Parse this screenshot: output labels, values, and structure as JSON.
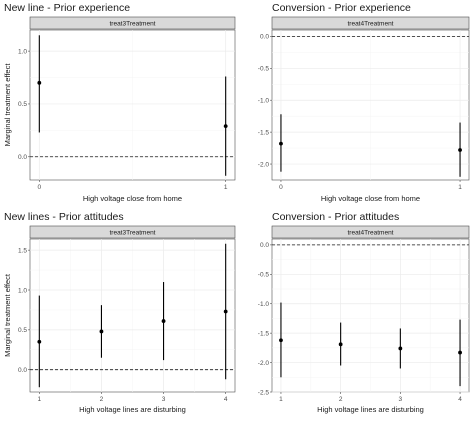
{
  "chart_data": [
    {
      "type": "scatter",
      "title": "New line - Prior experience",
      "strip": "treat3Treatment",
      "xlabel": "High voltage close from home",
      "ylabel": "Marginal treatment effect",
      "x": [
        0,
        1
      ],
      "x_ticks": [
        "0",
        "1"
      ],
      "xlim": [
        -0.05,
        1.05
      ],
      "y": [
        0.7,
        0.29
      ],
      "ci_low": [
        0.23,
        -0.18
      ],
      "ci_high": [
        1.15,
        0.76
      ],
      "ylim": [
        -0.22,
        1.2
      ],
      "y_ticks": [
        0,
        0.5,
        1
      ],
      "y_tick_labels": [
        "0.0",
        "0.5",
        "1.0"
      ],
      "reference_line": 0,
      "grid": true
    },
    {
      "type": "scatter",
      "title": "Conversion - Prior experience",
      "strip": "treat4Treatment",
      "xlabel": "High voltage close from home",
      "ylabel": "",
      "x": [
        0,
        1
      ],
      "x_ticks": [
        "0",
        "1"
      ],
      "xlim": [
        -0.05,
        1.05
      ],
      "y": [
        -1.68,
        -1.78
      ],
      "ci_low": [
        -2.12,
        -2.2
      ],
      "ci_high": [
        -1.22,
        -1.35
      ],
      "ylim": [
        -2.25,
        0.1
      ],
      "y_ticks": [
        -2,
        -1.5,
        -1,
        -0.5,
        0
      ],
      "y_tick_labels": [
        "-2.0",
        "-1.5",
        "-1.0",
        "-0.5",
        "0.0"
      ],
      "reference_line": 0,
      "grid": true
    },
    {
      "type": "scatter",
      "title": "New lines - Prior attitudes",
      "strip": "treat3Treatment",
      "xlabel": "High voltage lines are disturbing",
      "ylabel": "Marginal treatment effect",
      "x": [
        1,
        2,
        3,
        4
      ],
      "x_ticks": [
        "1",
        "2",
        "3",
        "4"
      ],
      "xlim": [
        0.85,
        4.15
      ],
      "y": [
        0.35,
        0.48,
        0.61,
        0.73
      ],
      "ci_low": [
        -0.22,
        0.15,
        0.12,
        -0.12
      ],
      "ci_high": [
        0.93,
        0.81,
        1.1,
        1.58
      ],
      "ylim": [
        -0.28,
        1.64
      ],
      "y_ticks": [
        0,
        0.5,
        1,
        1.5
      ],
      "y_tick_labels": [
        "0.0",
        "0.5",
        "1.0",
        "1.5"
      ],
      "reference_line": 0,
      "grid": true
    },
    {
      "type": "scatter",
      "title": "Conversion - Prior attitudes",
      "strip": "treat4Treatment",
      "xlabel": "High voltage lines are disturbing",
      "ylabel": "",
      "x": [
        1,
        2,
        3,
        4
      ],
      "x_ticks": [
        "1",
        "2",
        "3",
        "4"
      ],
      "xlim": [
        0.85,
        4.15
      ],
      "y": [
        -1.62,
        -1.69,
        -1.76,
        -1.83
      ],
      "ci_low": [
        -2.25,
        -2.05,
        -2.1,
        -2.4
      ],
      "ci_high": [
        -0.98,
        -1.32,
        -1.42,
        -1.27
      ],
      "ylim": [
        -2.5,
        0.1
      ],
      "y_ticks": [
        -2.5,
        -2,
        -1.5,
        -1,
        -0.5,
        0
      ],
      "y_tick_labels": [
        "-2.5",
        "-2.0",
        "-1.5",
        "-1.0",
        "-0.5",
        "0.0"
      ],
      "reference_line": 0,
      "grid": true
    }
  ]
}
